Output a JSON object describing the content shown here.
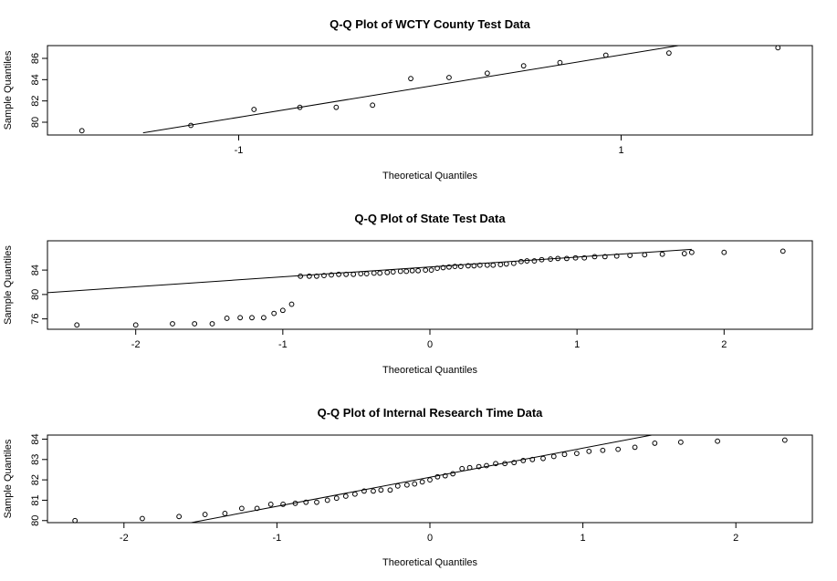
{
  "chart_data": [
    {
      "type": "scatter",
      "title": "Q-Q Plot of WCTY County Test Data",
      "xlabel": "Theoretical Quantiles",
      "ylabel": "Sample Quantiles",
      "xlim": [
        -2.0,
        2.0
      ],
      "ylim": [
        78.8,
        87.2
      ],
      "xticks": [
        -1,
        1
      ],
      "yticks": [
        80,
        82,
        84,
        86
      ],
      "grid": false,
      "points": {
        "x": [
          -1.82,
          -1.25,
          -0.92,
          -0.68,
          -0.49,
          -0.3,
          -0.1,
          0.1,
          0.3,
          0.49,
          0.68,
          0.92,
          1.25,
          1.82
        ],
        "y": [
          79.2,
          79.7,
          81.2,
          81.4,
          81.4,
          81.6,
          84.1,
          84.2,
          84.6,
          85.3,
          85.6,
          86.3,
          86.5,
          87.0
        ]
      },
      "reference_line": {
        "x": [
          -1.5,
          1.3
        ],
        "y": [
          79.0,
          87.2
        ]
      }
    },
    {
      "type": "scatter",
      "title": "Q-Q Plot of State Test Data",
      "xlabel": "Theoretical Quantiles",
      "ylabel": "Sample Quantiles",
      "xlim": [
        -2.6,
        2.6
      ],
      "ylim": [
        74.3,
        88.8
      ],
      "xticks": [
        -2,
        -1,
        0,
        1,
        2
      ],
      "yticks": [
        76,
        80,
        84
      ],
      "grid": false,
      "points": {
        "x": [
          -2.4,
          -2.0,
          -1.75,
          -1.6,
          -1.48,
          -1.38,
          -1.29,
          -1.21,
          -1.13,
          -1.06,
          -1.0,
          -0.94,
          -0.88,
          -0.82,
          -0.77,
          -0.72,
          -0.67,
          -0.62,
          -0.57,
          -0.52,
          -0.47,
          -0.43,
          -0.38,
          -0.34,
          -0.29,
          -0.25,
          -0.2,
          -0.16,
          -0.12,
          -0.08,
          -0.03,
          0.01,
          0.05,
          0.09,
          0.13,
          0.17,
          0.21,
          0.26,
          0.3,
          0.34,
          0.39,
          0.43,
          0.48,
          0.52,
          0.57,
          0.62,
          0.66,
          0.71,
          0.76,
          0.82,
          0.87,
          0.93,
          0.99,
          1.05,
          1.12,
          1.19,
          1.27,
          1.36,
          1.46,
          1.58,
          1.73,
          1.78,
          2.0,
          2.4
        ],
        "y": [
          75.0,
          75.0,
          75.2,
          75.2,
          75.2,
          76.1,
          76.2,
          76.2,
          76.2,
          76.9,
          77.4,
          78.4,
          83.0,
          83.0,
          83.0,
          83.1,
          83.2,
          83.3,
          83.3,
          83.3,
          83.4,
          83.4,
          83.5,
          83.5,
          83.6,
          83.7,
          83.8,
          83.8,
          83.9,
          83.9,
          84.0,
          84.0,
          84.3,
          84.4,
          84.5,
          84.6,
          84.6,
          84.7,
          84.7,
          84.8,
          84.8,
          84.8,
          84.9,
          85.0,
          85.1,
          85.4,
          85.5,
          85.5,
          85.7,
          85.8,
          85.9,
          85.9,
          86.0,
          86.0,
          86.2,
          86.2,
          86.3,
          86.4,
          86.5,
          86.6,
          86.7,
          86.9,
          86.9,
          87.1
        ]
      },
      "reference_line": {
        "x": [
          -2.6,
          1.78
        ],
        "y": [
          80.3,
          87.4
        ]
      }
    },
    {
      "type": "scatter",
      "title": "Q-Q Plot of Internal Research Time Data",
      "xlabel": "Theoretical Quantiles",
      "ylabel": "Sample Quantiles",
      "xlim": [
        -2.5,
        2.5
      ],
      "ylim": [
        79.9,
        84.2
      ],
      "xticks": [
        -2,
        -1,
        0,
        1,
        2
      ],
      "yticks": [
        80,
        81,
        82,
        83,
        84
      ],
      "grid": false,
      "points": {
        "x": [
          -2.32,
          -1.88,
          -1.64,
          -1.47,
          -1.34,
          -1.23,
          -1.13,
          -1.04,
          -0.96,
          -0.88,
          -0.81,
          -0.74,
          -0.67,
          -0.61,
          -0.55,
          -0.49,
          -0.43,
          -0.37,
          -0.32,
          -0.26,
          -0.21,
          -0.15,
          -0.1,
          -0.05,
          0.0,
          0.05,
          0.1,
          0.15,
          0.21,
          0.26,
          0.32,
          0.37,
          0.43,
          0.49,
          0.55,
          0.61,
          0.67,
          0.74,
          0.81,
          0.88,
          0.96,
          1.04,
          1.13,
          1.23,
          1.34,
          1.47,
          1.64,
          1.88,
          2.32
        ],
        "y": [
          80.0,
          80.1,
          80.2,
          80.3,
          80.35,
          80.6,
          80.6,
          80.8,
          80.8,
          80.85,
          80.9,
          80.9,
          81.0,
          81.1,
          81.2,
          81.3,
          81.45,
          81.45,
          81.5,
          81.5,
          81.7,
          81.75,
          81.8,
          81.9,
          82.0,
          82.15,
          82.2,
          82.3,
          82.55,
          82.6,
          82.65,
          82.7,
          82.8,
          82.8,
          82.85,
          82.95,
          83.0,
          83.05,
          83.15,
          83.25,
          83.3,
          83.4,
          83.45,
          83.5,
          83.6,
          83.8,
          83.85,
          83.9,
          83.95
        ]
      },
      "reference_line": {
        "x": [
          -1.56,
          1.45
        ],
        "y": [
          79.9,
          84.2
        ]
      }
    }
  ]
}
